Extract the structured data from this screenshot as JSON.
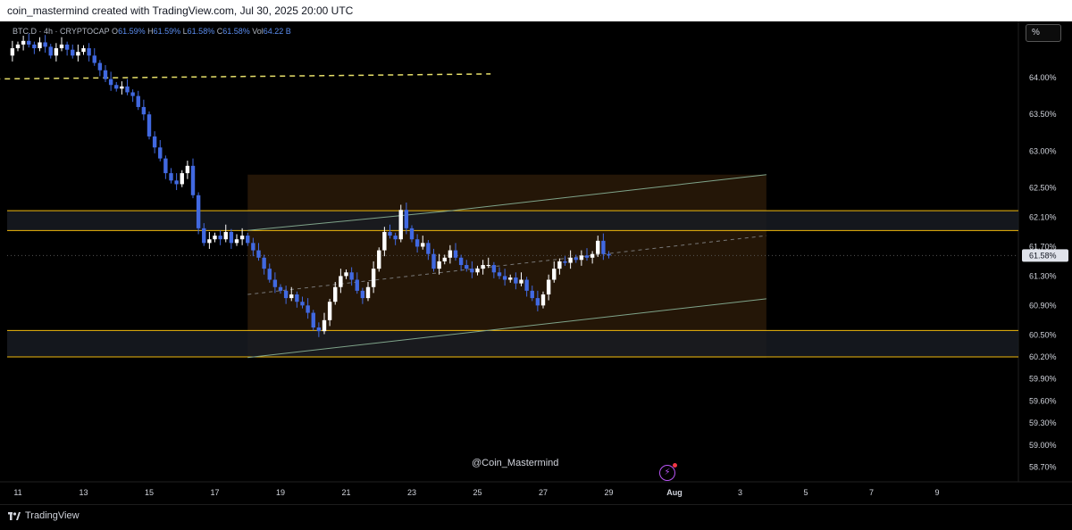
{
  "header": {
    "caption": "coin_mastermind created with TradingView.com, Jul 30, 2025 20:00 UTC"
  },
  "legend": {
    "symbol": "BTC.D · 4h · CRYPTOCAP",
    "o_label": "O",
    "o_value": "61.59%",
    "h_label": "H",
    "h_value": "61.59%",
    "l_label": "L",
    "l_value": "61.58%",
    "c_label": "C",
    "c_value": "61.58%",
    "vol_label": "Vol",
    "vol_value": "64.22 B"
  },
  "scale_button": "%",
  "watermark": "@Coin_Mastermind",
  "footer": {
    "brand": "TradingView"
  },
  "colors": {
    "bull": "#ffffff",
    "bear": "#4169e1",
    "level": "#f0b90b",
    "channel": "#7fa48a",
    "box_fill": "#2a1a08",
    "zone_fill": "#181b22",
    "dashed_line": "#e8e06a",
    "last_price_bg": "#e0e3eb"
  },
  "chart_data": {
    "type": "candlestick",
    "title": "BTC.D",
    "xlabel": "",
    "ylabel": "",
    "ylim": [
      58.6,
      64.6
    ],
    "x_ticks": [
      "11",
      "13",
      "15",
      "17",
      "19",
      "21",
      "23",
      "25",
      "27",
      "29",
      "Aug",
      "3",
      "5",
      "7",
      "9"
    ],
    "y_ticks": [
      "64.00%",
      "63.50%",
      "63.00%",
      "62.50%",
      "62.10%",
      "61.70%",
      "61.30%",
      "60.90%",
      "60.50%",
      "60.20%",
      "59.90%",
      "59.60%",
      "59.30%",
      "59.00%",
      "58.70%"
    ],
    "last_price": "61.58%",
    "candles_close": [
      64.35,
      64.38,
      64.32,
      64.25,
      64.3,
      64.4,
      64.45,
      64.5,
      64.45,
      64.4,
      64.48,
      64.42,
      64.3,
      64.4,
      64.45,
      64.38,
      64.3,
      64.35,
      64.4,
      64.3,
      64.2,
      64.1,
      63.98,
      63.9,
      63.85,
      63.88,
      63.8,
      63.75,
      63.6,
      63.5,
      63.2,
      63.05,
      62.9,
      62.7,
      62.6,
      62.55,
      62.7,
      62.8,
      62.4,
      61.95,
      61.75,
      61.8,
      61.85,
      61.8,
      61.9,
      61.75,
      61.8,
      61.85,
      61.75,
      61.65,
      61.55,
      61.4,
      61.25,
      61.15,
      61.1,
      61.0,
      61.05,
      60.95,
      60.9,
      60.8,
      60.6,
      60.55,
      60.7,
      60.95,
      61.15,
      61.3,
      61.35,
      61.25,
      61.1,
      61.0,
      61.15,
      61.4,
      61.65,
      61.9,
      61.85,
      61.8,
      62.2,
      61.95,
      61.8,
      61.7,
      61.75,
      61.6,
      61.4,
      61.5,
      61.55,
      61.65,
      61.55,
      61.45,
      61.4,
      61.35,
      61.4,
      61.45,
      61.45,
      61.35,
      61.3,
      61.25,
      61.28,
      61.2,
      61.25,
      61.1,
      61.0,
      60.9,
      61.05,
      61.25,
      61.4,
      61.5,
      61.48,
      61.55,
      61.52,
      61.58,
      61.55,
      61.6,
      61.78,
      61.6,
      61.58
    ],
    "levels": [
      62.19,
      61.92,
      60.56,
      60.2
    ],
    "channel_upper": [
      [
        18.0,
        61.92
      ],
      [
        24.2,
        62.19
      ],
      [
        33.8,
        62.68
      ]
    ],
    "channel_lower": [
      [
        18.0,
        60.19
      ],
      [
        33.8,
        60.99
      ]
    ],
    "channel_mid": [
      [
        18.0,
        61.05
      ],
      [
        33.8,
        61.85
      ]
    ],
    "dashed_resistance": [
      [
        10.0,
        63.98
      ],
      [
        25.4,
        64.05
      ]
    ]
  }
}
